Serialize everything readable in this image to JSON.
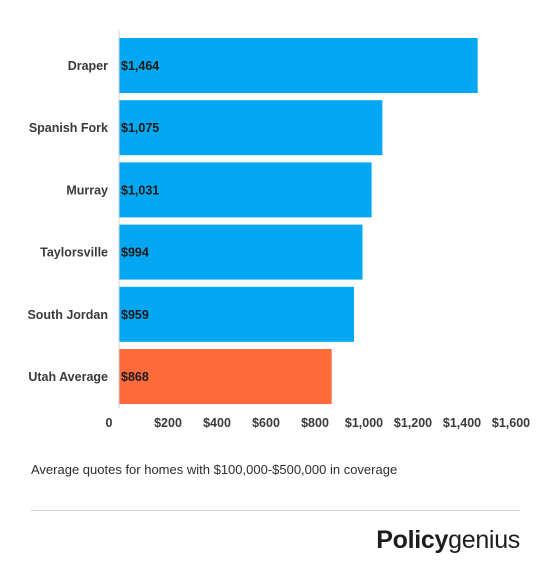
{
  "chart_data": {
    "type": "bar",
    "orientation": "horizontal",
    "categories": [
      "Draper",
      "Spanish Fork",
      "Murray",
      "Taylorsville",
      "South Jordan",
      "Utah Average"
    ],
    "values": [
      1464,
      1075,
      1031,
      994,
      959,
      868
    ],
    "value_labels": [
      "$1,464",
      "$1,075",
      "$1,031",
      "$994",
      "$959",
      "$868"
    ],
    "xlim": [
      0,
      1600
    ],
    "x_ticks": [
      0,
      200,
      400,
      600,
      800,
      1000,
      1200,
      1400,
      1600
    ],
    "x_tick_labels": [
      "0",
      "$200",
      "$400",
      "$600",
      "$800",
      "$1,000",
      "$1,200",
      "$1,400",
      "$1,600"
    ],
    "bar_colors": [
      "#04a7f2",
      "#04a7f2",
      "#04a7f2",
      "#04a7f2",
      "#04a7f2",
      "#ff6b3d"
    ],
    "grid": false,
    "title": "",
    "xlabel": "",
    "ylabel": ""
  },
  "caption": "Average quotes for homes with $100,000-$500,000 in coverage",
  "brand": {
    "part1": "Policy",
    "part2": "genius"
  }
}
